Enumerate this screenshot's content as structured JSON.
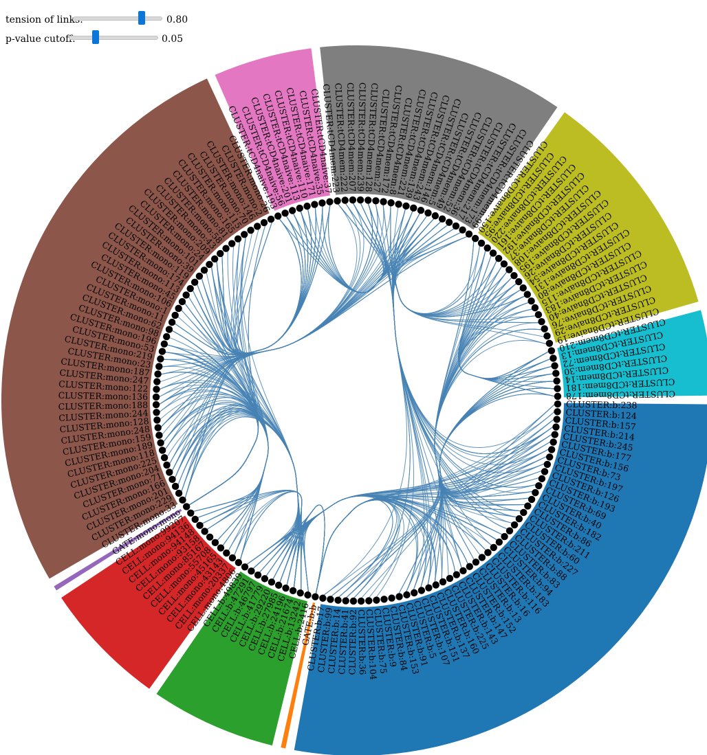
{
  "controls": {
    "tension": {
      "label": "tension of links:",
      "value": "0.80",
      "level": 0.8
    },
    "pvalue": {
      "label": "p-value cutoff:",
      "value": "0.05",
      "level": 0.28
    }
  },
  "groups": [
    {
      "key": "b",
      "color": "#1f77b4",
      "labels": [
        "CLUSTER:b:238",
        "CLUSTER:b:124",
        "CLUSTER:b:157",
        "CLUSTER:b:214",
        "CLUSTER:b:245",
        "CLUSTER:b:177",
        "CLUSTER:b:156",
        "CLUSTER:b:73",
        "CLUSTER:b:197",
        "CLUSTER:b:126",
        "CLUSTER:b:193",
        "CLUSTER:b:69",
        "CLUSTER:b:40",
        "CLUSTER:b:182",
        "CLUSTER:b:86",
        "CLUSTER:b:211",
        "CLUSTER:b:60",
        "CLUSTER:b:227",
        "CLUSTER:b:88",
        "CLUSTER:b:83",
        "CLUSTER:b:94",
        "CLUSTER:b:183",
        "CLUSTER:b:116",
        "CLUSTER:b:16",
        "CLUSTER:b:13",
        "CLUSTER:b:152",
        "CLUSTER:b:147",
        "CLUSTER:b:143",
        "CLUSTER:b:225",
        "CLUSTER:b:160",
        "CLUSTER:b:137",
        "CLUSTER:b:151",
        "CLUSTER:b:107",
        "CLUSTER:b:5",
        "CLUSTER:b:91",
        "CLUSTER:b:153",
        "CLUSTER:b:84",
        "CLUSTER:b:9",
        "CLUSTER:b:75",
        "CLUSTER:b:104",
        "CLUSTER:b:36",
        "CLUSTER:b:92",
        "CLUSTER:b:41",
        "CLUSTER:b:14",
        "CLUSTER:b:99",
        "CLUSTER:b:17"
      ]
    },
    {
      "key": "gate-b",
      "color": "#ff7f0e",
      "labels": [
        "GATE:b:b"
      ]
    },
    {
      "key": "cell-b",
      "color": "#2ca02c",
      "labels": [
        "CELL:b:2416",
        "CELL:b:13242",
        "CELL:b:21674",
        "CELL:b:24196",
        "CELL:b:27985",
        "CELL:b:29220",
        "CELL:b:41779",
        "CELL:b:46797",
        "CELL:b:47291",
        "CELL:b:49839"
      ]
    },
    {
      "key": "cell-mono",
      "color": "#d62728",
      "labels": [
        "CELL:mono:4806",
        "CELL:mono:20337",
        "CELL:mono:43143",
        "CELL:mono:45165",
        "CELL:mono:55708",
        "CELL:mono:85167",
        "CELL:mono:93158",
        "CELL:mono:94148",
        "CELL:mono:94136",
        "CELL:mono:99207"
      ]
    },
    {
      "key": "gate-mono",
      "color": "#9467bd",
      "labels": [
        "GATE:mono:mono"
      ]
    },
    {
      "key": "mono",
      "color": "#8c564b",
      "labels": [
        "CLUSTER:mono:33",
        "CLUSTER:mono:229",
        "CLUSTER:mono:201",
        "CLUSTER:mono:166",
        "CLUSTER:mono:71",
        "CLUSTER:mono:204",
        "CLUSTER:mono:225",
        "CLUSTER:mono:118",
        "CLUSTER:mono:189",
        "CLUSTER:mono:159",
        "CLUSTER:mono:248",
        "CLUSTER:mono:128",
        "CLUSTER:mono:244",
        "CLUSTER:mono:188",
        "CLUSTER:mono:136",
        "CLUSTER:mono:122",
        "CLUSTER:mono:247",
        "CLUSTER:mono:187",
        "CLUSTER:mono:23",
        "CLUSTER:mono:219",
        "CLUSTER:mono:53",
        "CLUSTER:mono:196",
        "CLUSTER:mono:98",
        "CLUSTER:mono:62",
        "CLUSTER:mono:11",
        "CLUSTER:mono:1",
        "CLUSTER:mono:106",
        "CLUSTER:mono:45",
        "CLUSTER:mono:113",
        "CLUSTER:mono:174",
        "CLUSTER:mono:119",
        "CLUSTER:mono:39",
        "CLUSTER:mono:101",
        "CLUSTER:mono:24",
        "CLUSTER:mono:209",
        "CLUSTER:mono:43",
        "CLUSTER:mono:58",
        "CLUSTER:mono:81",
        "CLUSTER:mono:165",
        "CLUSTER:mono:115",
        "CLUSTER:mono:70",
        "CLUSTER:mono:146",
        "CLUSTER:mono:2",
        "CLUSTER:mono:26"
      ]
    },
    {
      "key": "tcd4naive",
      "color": "#e377c2",
      "labels": [
        "CLUSTER:tCD4naive:193",
        "CLUSTER:tCD4naive:56",
        "CLUSTER:tCD4naive:201",
        "CLUSTER:tCD4naive:113",
        "CLUSTER:tCD4naive:110",
        "CLUSTER:tCD4naive:171",
        "CLUSTER:tCD4naive:35",
        "CLUSTER:tCD4naive:37"
      ]
    },
    {
      "key": "tcd4mem",
      "color": "#7f7f7f",
      "labels": [
        "CLUSTER:tCD4mem:223",
        "CLUSTER:tCD4mem:222",
        "CLUSTER:tCD4mem:207",
        "CLUSTER:tCD4mem:239",
        "CLUSTER:tCD4mem:128",
        "CLUSTER:tCD4mem:27",
        "CLUSTER:tCD4mem:172",
        "CLUSTER:tCD4mem:8",
        "CLUSTER:tCD4mem:221",
        "CLUSTER:tCD4mem:139",
        "CLUSTER:tCD4mem:243",
        "CLUSTER:tCD4mem:146",
        "CLUSTER:tCD4mem:5",
        "CLUSTER:tCD4mem:49",
        "CLUSTER:tCD4mem:52",
        "CLUSTER:tCD4mem:36",
        "CLUSTER:tCD4mem:217",
        "CLUSTER:tCD4mem:173",
        "CLUSTER:tCD4mem:99"
      ]
    },
    {
      "key": "tcd8naive",
      "color": "#bcbd22",
      "labels": [
        "CLUSTER:tCD8naive:150",
        "CLUSTER:tCD8naive:95",
        "CLUSTER:tCD8naive:220",
        "CLUSTER:tCD8naive:161",
        "CLUSTER:tCD8naive:192",
        "CLUSTER:tCD8naive:37",
        "CLUSTER:tCD8naive:108",
        "CLUSTER:tCD8naive:195",
        "CLUSTER:tCD8naive:26",
        "CLUSTER:tCD8naive:54",
        "CLUSTER:tCD8naive:131",
        "CLUSTER:tCD8naive:80",
        "CLUSTER:tCD8naive:115",
        "CLUSTER:tCD8naive:183",
        "CLUSTER:tCD8naive:40",
        "CLUSTER:tCD8naive:76",
        "CLUSTER:tCD8naive:29",
        "CLUSTER:tCD8naive:19"
      ]
    },
    {
      "key": "tcd8mem",
      "color": "#17becf",
      "labels": [
        "CLUSTER:tCD8mem:210",
        "CLUSTER:tCD8mem:13",
        "CLUSTER:tCD8mem:72",
        "CLUSTER:tCD8mem:30",
        "CLUSTER:tCD8mem:14",
        "CLUSTER:tCD8mem:181",
        "CLUSTER:tCD8mem:178"
      ]
    }
  ],
  "link_color": "#4682b4"
}
